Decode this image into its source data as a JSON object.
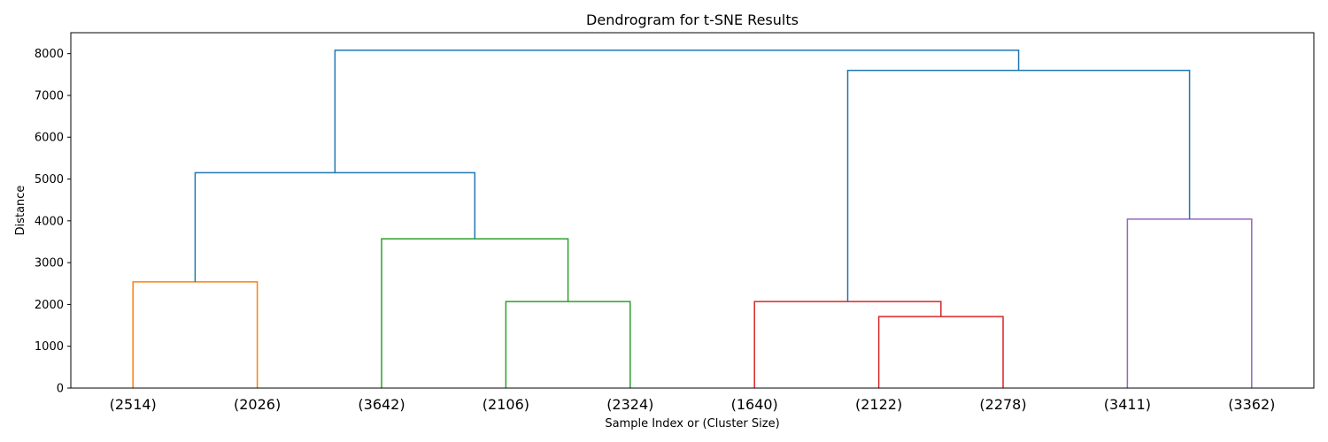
{
  "chart_data": {
    "type": "dendrogram",
    "title": "Dendrogram for t-SNE Results",
    "xlabel": "Sample Index or (Cluster Size)",
    "ylabel": "Distance",
    "ylim": [
      0,
      8500
    ],
    "yticks": [
      0,
      1000,
      2000,
      3000,
      4000,
      5000,
      6000,
      7000,
      8000
    ],
    "leaves": [
      "(2514)",
      "(2026)",
      "(3642)",
      "(2106)",
      "(2324)",
      "(1640)",
      "(2122)",
      "(2278)",
      "(3411)",
      "(3362)"
    ],
    "grid": false,
    "legend": "none",
    "colors": {
      "above_threshold": "#1f77b4",
      "cluster_1": "#ff7f0e",
      "cluster_2": "#2ca02c",
      "cluster_3": "#d62728",
      "cluster_4": "#9467bd"
    },
    "merges": [
      {
        "name": "orange-merge",
        "left_leaf": 0,
        "right_leaf": 1,
        "left_height": 0,
        "right_height": 0,
        "height": 2540,
        "color": "cluster_1"
      },
      {
        "name": "green-low-merge",
        "left_leaf": 3,
        "right_leaf": 4,
        "left_height": 0,
        "right_height": 0,
        "height": 2070,
        "color": "cluster_2"
      },
      {
        "name": "green-high-merge",
        "left_leaf": 2,
        "right_leaf": 3.5,
        "left_height": 0,
        "right_height": 2070,
        "height": 3570,
        "color": "cluster_2"
      },
      {
        "name": "red-low-merge",
        "left_leaf": 6,
        "right_leaf": 7,
        "left_height": 0,
        "right_height": 0,
        "height": 1710,
        "color": "cluster_3"
      },
      {
        "name": "red-high-merge",
        "left_leaf": 5,
        "right_leaf": 6.5,
        "left_height": 0,
        "right_height": 1710,
        "height": 2070,
        "color": "cluster_3"
      },
      {
        "name": "purple-merge",
        "left_leaf": 8,
        "right_leaf": 9,
        "left_height": 0,
        "right_height": 0,
        "height": 4040,
        "color": "cluster_4"
      },
      {
        "name": "blue-left-merge",
        "left_leaf": 0.5,
        "right_leaf": 2.75,
        "left_height": 2540,
        "right_height": 3570,
        "height": 5150,
        "color": "above_threshold"
      },
      {
        "name": "blue-right-merge",
        "left_leaf": 5.75,
        "right_leaf": 8.5,
        "left_height": 2070,
        "right_height": 4040,
        "height": 7600,
        "color": "above_threshold"
      },
      {
        "name": "blue-root-merge",
        "left_leaf": 1.625,
        "right_leaf": 7.125,
        "left_height": 5150,
        "right_height": 7600,
        "height": 8080,
        "color": "above_threshold"
      }
    ]
  }
}
